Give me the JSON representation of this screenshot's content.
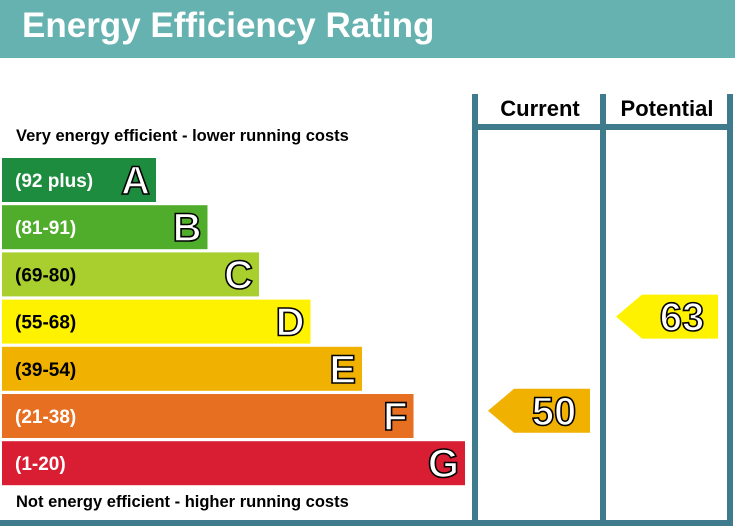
{
  "header": {
    "title": "Energy Efficiency Rating"
  },
  "notes": {
    "top": "Very energy efficient - lower running costs",
    "bottom": "Not energy efficient - higher running costs"
  },
  "columns": {
    "current": "Current",
    "potential": "Potential"
  },
  "colors": {
    "header": "#66b2b0",
    "frame": "#3f7b8c"
  },
  "chart_data": {
    "type": "bar",
    "title": "Energy Efficiency Rating",
    "bands": [
      {
        "letter": "A",
        "range": "(92 plus)",
        "color": "#1e8c3f"
      },
      {
        "letter": "B",
        "range": "(81-91)",
        "color": "#4fad2b"
      },
      {
        "letter": "C",
        "range": "(69-80)",
        "color": "#a8cf2e"
      },
      {
        "letter": "D",
        "range": "(55-68)",
        "color": "#fef200"
      },
      {
        "letter": "E",
        "range": "(39-54)",
        "color": "#f0b100"
      },
      {
        "letter": "F",
        "range": "(21-38)",
        "color": "#e66f21"
      },
      {
        "letter": "G",
        "range": "(1-20)",
        "color": "#d91d33"
      }
    ],
    "current": {
      "value": "50",
      "band": "E",
      "color": "#f0b100"
    },
    "potential": {
      "value": "63",
      "band": "D",
      "color": "#fef200"
    }
  }
}
